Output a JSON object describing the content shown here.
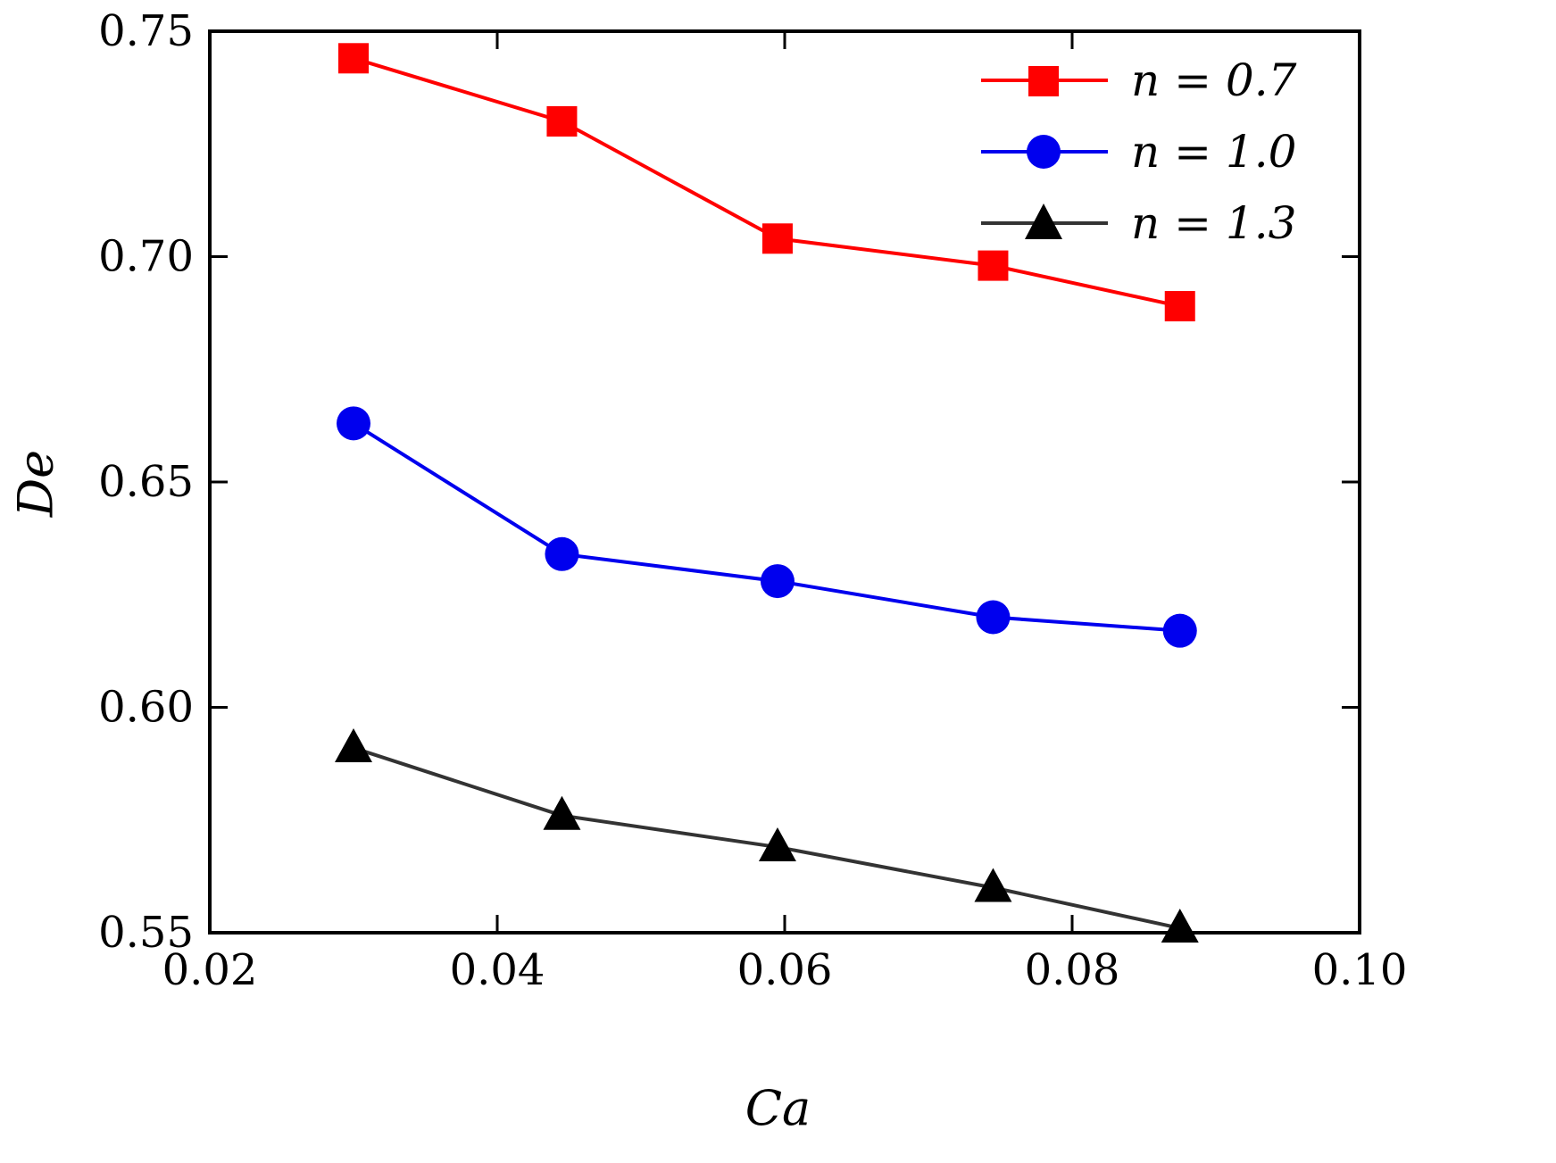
{
  "chart_data": {
    "type": "line",
    "title": "",
    "xlabel": "Ca",
    "ylabel": "De",
    "xlim": [
      0.02,
      0.1
    ],
    "ylim": [
      0.55,
      0.75
    ],
    "grid": false,
    "legend_position": "top-right-inside",
    "frame_color": "#000000",
    "xticks": [
      {
        "value": 0.02,
        "label": "0.02"
      },
      {
        "value": 0.04,
        "label": "0.04"
      },
      {
        "value": 0.06,
        "label": "0.06"
      },
      {
        "value": 0.08,
        "label": "0.08"
      },
      {
        "value": 0.1,
        "label": "0.10"
      }
    ],
    "yticks": [
      {
        "value": 0.55,
        "label": "0.55"
      },
      {
        "value": 0.6,
        "label": "0.60"
      },
      {
        "value": 0.65,
        "label": "0.65"
      },
      {
        "value": 0.7,
        "label": "0.70"
      },
      {
        "value": 0.75,
        "label": "0.75"
      }
    ],
    "series": [
      {
        "name": "n-0.7",
        "label": "n = 0.7",
        "marker": "square",
        "color": "#ff0000",
        "line_color": "#ff0000",
        "x": [
          0.03,
          0.0445,
          0.0595,
          0.0745,
          0.0875
        ],
        "y": [
          0.744,
          0.73,
          0.704,
          0.698,
          0.689
        ]
      },
      {
        "name": "n-1.0",
        "label": "n = 1.0",
        "marker": "circle",
        "color": "#0000ee",
        "line_color": "#0000ee",
        "x": [
          0.03,
          0.0445,
          0.0595,
          0.0745,
          0.0875
        ],
        "y": [
          0.663,
          0.634,
          0.628,
          0.62,
          0.617
        ]
      },
      {
        "name": "n-1.3",
        "label": "n = 1.3",
        "marker": "triangle",
        "color": "#000000",
        "line_color": "#333333",
        "x": [
          0.03,
          0.0445,
          0.0595,
          0.0745,
          0.0875
        ],
        "y": [
          0.591,
          0.576,
          0.569,
          0.56,
          0.551
        ]
      }
    ]
  }
}
